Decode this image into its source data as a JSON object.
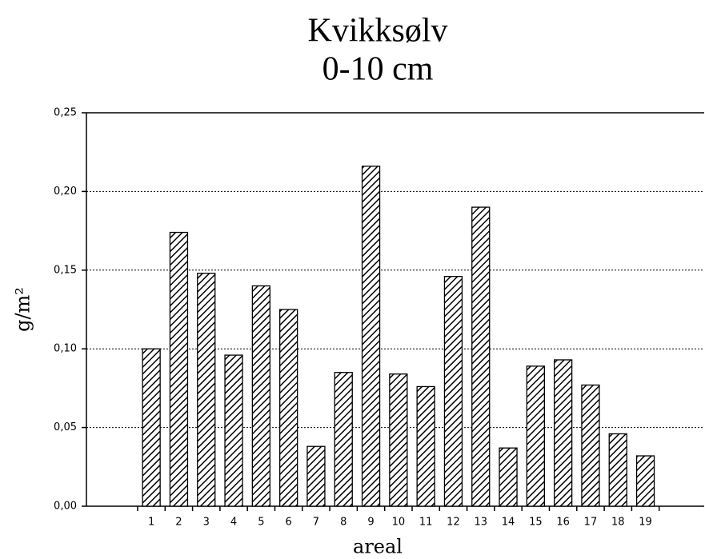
{
  "chart_data": {
    "type": "bar",
    "title": "Kvikksølv",
    "subtitle": "0-10 cm",
    "x_label": "areal",
    "y_label": "g/m²",
    "categories": [
      "1",
      "2",
      "3",
      "4",
      "5",
      "6",
      "7",
      "8",
      "9",
      "10",
      "11",
      "12",
      "13",
      "14",
      "15",
      "16",
      "17",
      "18",
      "19"
    ],
    "values": [
      0.1,
      0.174,
      0.148,
      0.096,
      0.14,
      0.125,
      0.038,
      0.085,
      0.216,
      0.084,
      0.076,
      0.146,
      0.19,
      0.037,
      0.089,
      0.093,
      0.077,
      0.046,
      0.032
    ],
    "color": "#000000",
    "ylim": [
      0,
      0.25
    ],
    "yticks": [
      {
        "value": 0,
        "label": "0,00"
      },
      {
        "value": 0.05,
        "label": "0,05"
      },
      {
        "value": 0.1,
        "label": "0,10"
      },
      {
        "value": 0.15,
        "label": "0,15"
      },
      {
        "value": 0.2,
        "label": "0,20"
      },
      {
        "value": 0.25,
        "label": "0,25"
      }
    ],
    "grid": true
  }
}
